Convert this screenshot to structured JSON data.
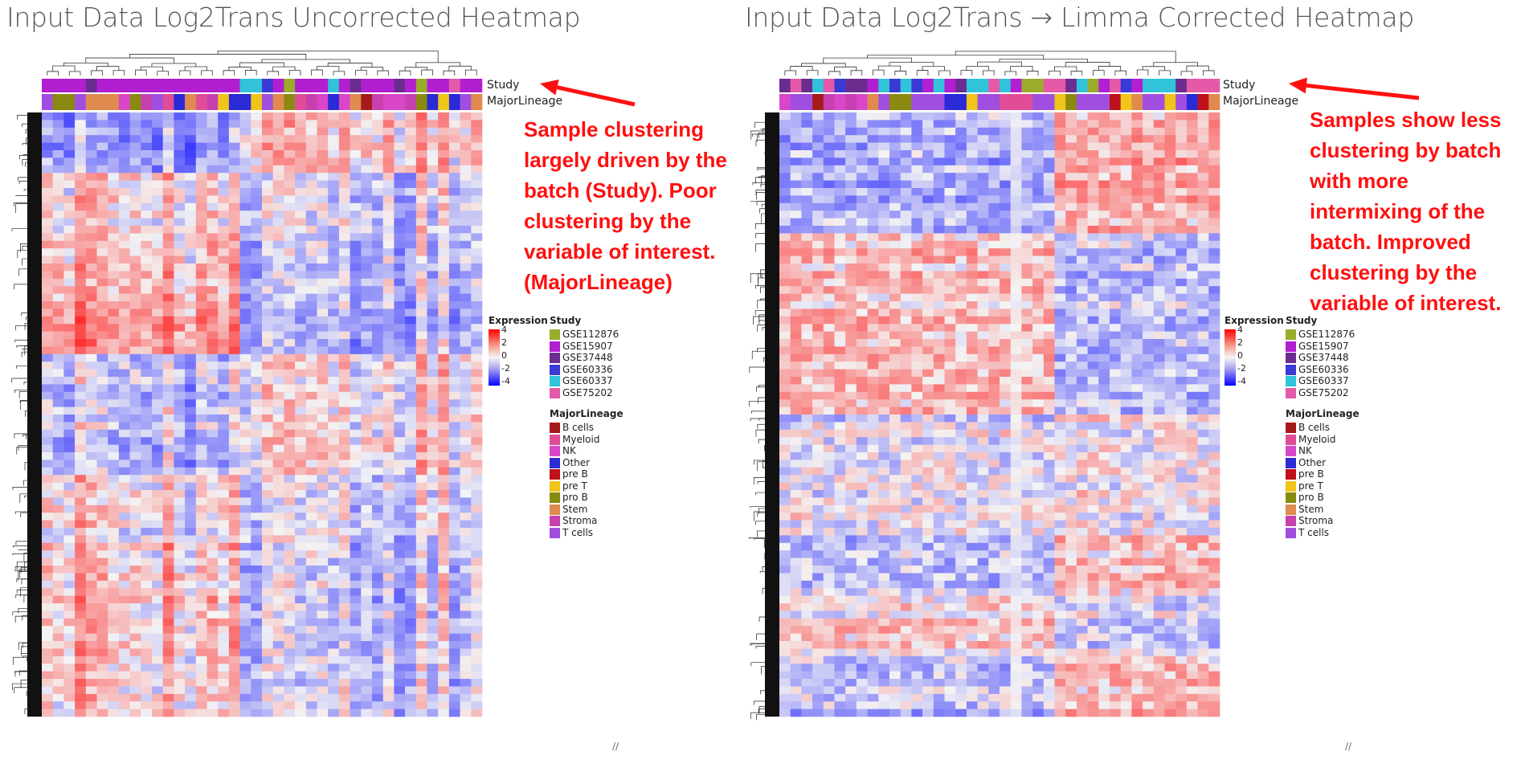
{
  "panels": [
    {
      "title": "Input Data Log2Trans Uncorrected Heatmap",
      "study_label": "Study",
      "lineage_label": "MajorLineage",
      "annotation": "Sample clustering\nlargely driven by the\nbatch (Study). Poor\nclustering by the\nvariable of interest.\n(MajorLineage)"
    },
    {
      "title": "Input Data Log2Trans → Limma Corrected Heatmap",
      "study_label": "Study",
      "lineage_label": "MajorLineage",
      "annotation": "Samples show less\nclustering by batch\nwith more\nintermixing of the\nbatch. Improved\nclustering by the\nvariable of interest."
    }
  ],
  "legend": {
    "expression_title": "Expression",
    "expression_ticks": [
      "4",
      "2",
      "0",
      "-2",
      "-4"
    ],
    "study_title": "Study",
    "studies": [
      {
        "label": "GSE112876",
        "color": "#9aac2a"
      },
      {
        "label": "GSE15907",
        "color": "#b21fd1"
      },
      {
        "label": "GSE37448",
        "color": "#6a2d8f"
      },
      {
        "label": "GSE60336",
        "color": "#3a3ad6"
      },
      {
        "label": "GSE60337",
        "color": "#31c3d9"
      },
      {
        "label": "GSE75202",
        "color": "#e45aa8"
      }
    ],
    "lineage_title": "MajorLineage",
    "lineages": [
      {
        "label": "B cells",
        "color": "#a51a1a"
      },
      {
        "label": "Myeloid",
        "color": "#e04d96"
      },
      {
        "label": "NK",
        "color": "#d946c9"
      },
      {
        "label": "Other",
        "color": "#2a2ad6"
      },
      {
        "label": "pre B",
        "color": "#c0101a"
      },
      {
        "label": "pre T",
        "color": "#f0c419"
      },
      {
        "label": "pro B",
        "color": "#8a8a10"
      },
      {
        "label": "Stem",
        "color": "#e08a50"
      },
      {
        "label": "Stroma",
        "color": "#c840b0"
      },
      {
        "label": "T cells",
        "color": "#a04ee0"
      }
    ]
  },
  "chart_data": [
    {
      "type": "heatmap",
      "title": "Input Data Log2Trans Uncorrected Heatmap",
      "color_scale": {
        "name": "Expression",
        "min": -4,
        "max": 4,
        "low": "#0000ff",
        "mid": "#f4f4f4",
        "high": "#ff0000"
      },
      "column_annotations": [
        "Study",
        "MajorLineage"
      ],
      "row_dendrogram": true,
      "column_dendrogram": true
    },
    {
      "type": "heatmap",
      "title": "Input Data Log2Trans → Limma Corrected Heatmap",
      "color_scale": {
        "name": "Expression",
        "min": -4,
        "max": 4,
        "low": "#0000ff",
        "mid": "#f4f4f4",
        "high": "#ff0000"
      },
      "column_annotations": [
        "Study",
        "MajorLineage"
      ],
      "row_dendrogram": true,
      "column_dendrogram": true
    }
  ]
}
